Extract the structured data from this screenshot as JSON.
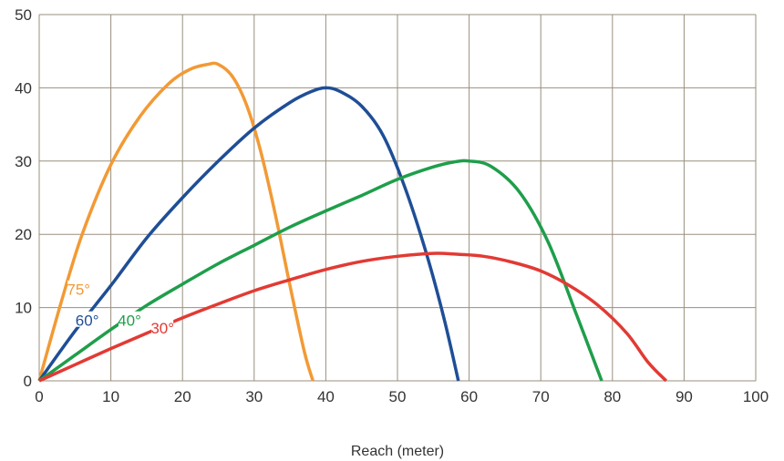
{
  "chart_data": {
    "type": "line",
    "title": "",
    "xlabel": "Reach (meter)",
    "ylabel": "",
    "xlim": [
      0,
      100
    ],
    "ylim": [
      0,
      50
    ],
    "x_ticks": [
      0,
      10,
      20,
      30,
      40,
      50,
      60,
      70,
      80,
      90,
      100
    ],
    "y_ticks": [
      0,
      10,
      20,
      30,
      40,
      50
    ],
    "grid": true,
    "series": [
      {
        "name": "75°",
        "color": "#F29A35",
        "x": [
          0,
          3,
          6,
          10,
          14,
          18,
          21,
          23.5,
          25,
          27,
          29,
          31,
          33,
          35,
          37,
          38.2
        ],
        "y": [
          0,
          10.5,
          20,
          29.5,
          36,
          40.5,
          42.5,
          43.2,
          43.2,
          41.5,
          37.5,
          31,
          22.5,
          13,
          4,
          0
        ]
      },
      {
        "name": "60°",
        "color": "#1F4E96",
        "x": [
          0,
          5,
          10,
          15,
          20,
          25,
          30,
          35,
          38,
          40,
          42,
          45,
          48,
          51,
          54,
          56.5,
          58.5
        ],
        "y": [
          0,
          6.8,
          13,
          19.5,
          25,
          30,
          34.5,
          38,
          39.5,
          40,
          39.5,
          37.5,
          33.5,
          26.5,
          17.5,
          8.5,
          0
        ]
      },
      {
        "name": "40°",
        "color": "#1F9E4B",
        "x": [
          0,
          5,
          10,
          15,
          20,
          25,
          30,
          35,
          40,
          45,
          50,
          55,
          58,
          60,
          63,
          67,
          71,
          75,
          78.5
        ],
        "y": [
          0,
          3.5,
          7,
          10.3,
          13.2,
          16,
          18.5,
          21,
          23.2,
          25.3,
          27.5,
          29.2,
          29.9,
          30,
          29.3,
          25.8,
          19,
          9,
          0
        ]
      },
      {
        "name": "30°",
        "color": "#E23A34",
        "x": [
          0,
          5,
          10,
          15,
          20,
          25,
          30,
          35,
          40,
          45,
          50,
          55,
          58,
          62,
          66,
          70,
          74,
          78,
          82,
          85,
          87.5
        ],
        "y": [
          0,
          2.2,
          4.4,
          6.5,
          8.6,
          10.5,
          12.3,
          13.8,
          15.2,
          16.3,
          17,
          17.4,
          17.3,
          17,
          16.2,
          15,
          13,
          10.3,
          6.5,
          2.5,
          0
        ]
      }
    ],
    "annotations": [
      {
        "text": "75°",
        "color": "#F29A35",
        "x": 5.5,
        "y": 12.5
      },
      {
        "text": "60°",
        "color": "#1F4E96",
        "x": 6.7,
        "y": 8.3
      },
      {
        "text": "40°",
        "color": "#1F9E4B",
        "x": 12.6,
        "y": 8.3
      },
      {
        "text": "30°",
        "color": "#E23A34",
        "x": 17.2,
        "y": 7.2
      }
    ]
  }
}
